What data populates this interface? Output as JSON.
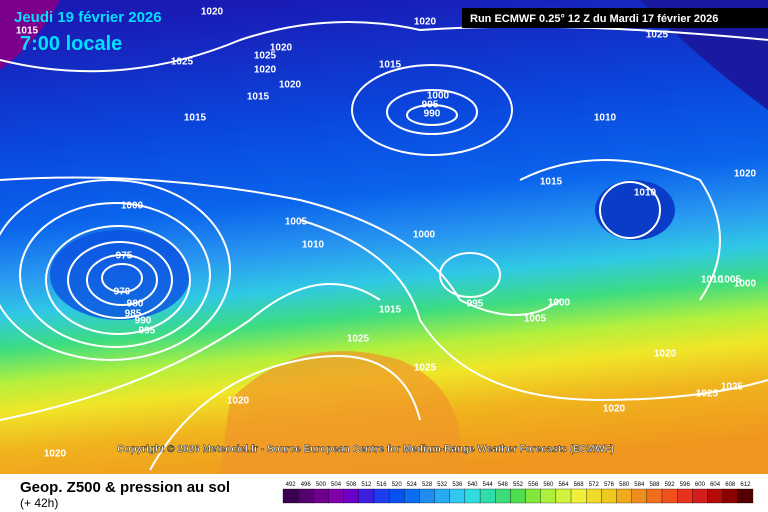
{
  "header": {
    "date": "Jeudi 19 février 2026",
    "time": "7:00 locale",
    "run": "Run ECMWF 0.25° 12 Z du Mardi 17 février 2026"
  },
  "map": {
    "isobar_labels": [
      1020,
      1020,
      1025,
      1015,
      1025,
      1020,
      1025,
      1020,
      1020,
      1015,
      1015,
      1015,
      1000,
      995,
      990,
      1010,
      1020,
      1015,
      1010,
      1000,
      1005,
      1010,
      1000,
      975,
      970,
      980,
      985,
      990,
      995,
      995,
      1000,
      1005,
      1015,
      1025,
      1010,
      1005,
      1000,
      1020,
      1025,
      1025,
      1025,
      1020,
      1020,
      1020
    ]
  },
  "copyright": "Copyright © 2026 Meteociel.fr - Source European Centre for Medium-Range Weather Forecasts (ECMWF)",
  "legend": {
    "title": "Geop. Z500 & pression au sol",
    "lead": "(+ 42h)",
    "scale": {
      "values": [
        492,
        496,
        500,
        504,
        508,
        512,
        516,
        520,
        524,
        528,
        532,
        536,
        540,
        544,
        548,
        552,
        556,
        560,
        564,
        568,
        572,
        576,
        580,
        584,
        588,
        592,
        596,
        600,
        604,
        608,
        612
      ],
      "colors": [
        "#3c0050",
        "#55006e",
        "#6e008c",
        "#8200aa",
        "#6a00c8",
        "#3c1ee0",
        "#1e3cf0",
        "#0a50f0",
        "#0a6ef0",
        "#1e8cf0",
        "#28aaf0",
        "#30c8f0",
        "#30dcdc",
        "#30dcaa",
        "#3cdc78",
        "#50dc50",
        "#82e63c",
        "#aaf03c",
        "#d2f03c",
        "#f0f03c",
        "#f0dc28",
        "#f0c81e",
        "#f0aa1e",
        "#f08c1e",
        "#f06e1e",
        "#f0501e",
        "#e6321e",
        "#d21e1e",
        "#b40a0a",
        "#8c0000",
        "#500000"
      ]
    }
  }
}
